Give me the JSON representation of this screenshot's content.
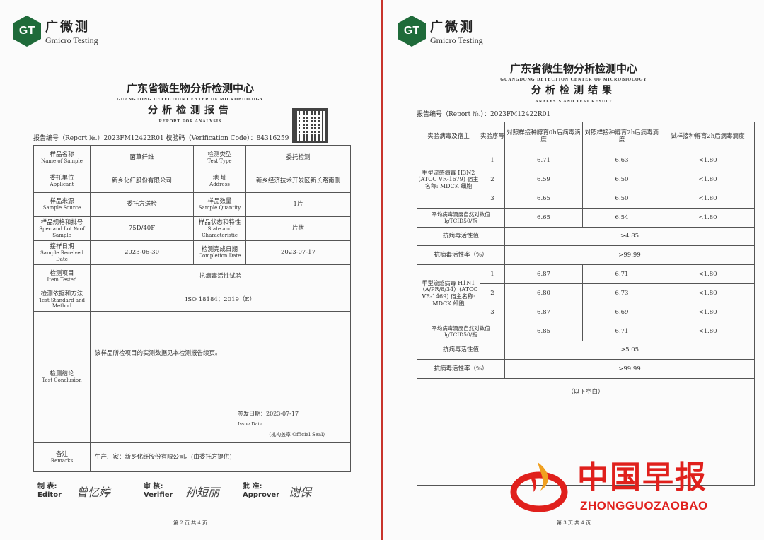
{
  "logo": {
    "cn": "广微测",
    "en": "Gmicro Testing",
    "mark": "GT"
  },
  "page1": {
    "center": "广东省微生物分析检测中心",
    "center_en": "GUANGDONG DETECTION CENTER OF MICROBIOLOGY",
    "title": "分析检测报告",
    "title_en": "REPORT FOR ANALYSIS",
    "report_line": "报告编号（Report №.）2023FM12422R01  校验码（Verification Code）：84316259",
    "rows": [
      {
        "l1": "样品名称",
        "l1en": "Name of Sample",
        "v1": "菌草纤维",
        "l2": "检测类型",
        "l2en": "Test Type",
        "v2": "委托检测"
      },
      {
        "l1": "委托单位",
        "l1en": "Applicant",
        "v1": "新乡化纤股份有限公司",
        "l2": "地 址",
        "l2en": "Address",
        "v2": "新乡经济技术开发区新长路南侧"
      },
      {
        "l1": "样品来源",
        "l1en": "Sample Source",
        "v1": "委托方送检",
        "l2": "样品数量",
        "l2en": "Sample Quantity",
        "v2": "1片"
      },
      {
        "l1": "样品规格和批号",
        "l1en": "Spec and Lot № of Sample",
        "v1": "75D/40F",
        "l2": "样品状态和特性",
        "l2en": "State and Characteristic",
        "v2": "片状"
      },
      {
        "l1": "接样日期",
        "l1en": "Sample Received Date",
        "v1": "2023-06-30",
        "l2": "检测完成日期",
        "l2en": "Completion Date",
        "v2": "2023-07-17"
      }
    ],
    "item": {
      "l": "检测项目",
      "len": "Item Tested",
      "v": "抗病毒活性试验"
    },
    "method": {
      "l": "检测依据和方法",
      "len": "Test Standard and Method",
      "v": "ISO 18184：2019（E）"
    },
    "conclusion": {
      "l": "检测结论",
      "len": "Test Conclusion",
      "v": "该样品所检项目的实测数据见本检测报告续页。",
      "issue": "签发日期：2023-07-17",
      "issue_en": "Issue Date",
      "seal": "（机构盖章 Official Seal）"
    },
    "remarks": {
      "l": "备注",
      "len": "Remarks",
      "v": "生产厂家：新乡化纤股份有限公司。(由委托方提供)"
    },
    "signatures": [
      {
        "cn": "制 表:",
        "en": "Editor",
        "sig": "曾忆婷"
      },
      {
        "cn": "审 核:",
        "en": "Verifier",
        "sig": "孙短丽"
      },
      {
        "cn": "批 准:",
        "en": "Approver",
        "sig": "谢保"
      }
    ],
    "footer": "第 2 页 共 4 页"
  },
  "page2": {
    "center": "广东省微生物分析检测中心",
    "center_en": "GUANGDONG DETECTION CENTER OF MICROBIOLOGY",
    "title": "分析检测结果",
    "title_en": "ANALYSIS AND TEST RESULT",
    "report_line": "报告编号（Report №.）：2023FM12422R01",
    "headers": [
      "实验病毒及宿主",
      "实验序号",
      "对照样接种孵育0h后病毒滴度",
      "对照样接种孵育2h后病毒滴度",
      "试样接种孵育2h后病毒滴度"
    ],
    "groups": [
      {
        "virus": "甲型流感病毒 H3N2 (ATCC VR-1679) 宿主名称: MDCK 细胞",
        "rows": [
          [
            "1",
            "6.71",
            "6.63",
            "<1.80"
          ],
          [
            "2",
            "6.59",
            "6.50",
            "<1.80"
          ],
          [
            "3",
            "6.65",
            "6.50",
            "<1.80"
          ]
        ],
        "avg_label": "平均病毒滴度自然对数值 lgTCID50/瓶",
        "avg": [
          "6.65",
          "6.54",
          "<1.80"
        ],
        "activity_label": "抗病毒活性值",
        "activity": ">4.85",
        "rate_label": "抗病毒活性率（%）",
        "rate": ">99.99"
      },
      {
        "virus": "甲型流感病毒 H1N1（A/PR/8/34）(ATCC VR-1469) 宿主名称: MDCK 细胞",
        "rows": [
          [
            "1",
            "6.87",
            "6.71",
            "<1.80"
          ],
          [
            "2",
            "6.80",
            "6.73",
            "<1.80"
          ],
          [
            "3",
            "6.87",
            "6.69",
            "<1.80"
          ]
        ],
        "avg_label": "平均病毒滴度自然对数值 lgTCID50/瓶",
        "avg": [
          "6.85",
          "6.71",
          "<1.80"
        ],
        "activity_label": "抗病毒活性值",
        "activity": ">5.05",
        "rate_label": "抗病毒活性率（%）",
        "rate": ">99.99"
      }
    ],
    "blank_note": "（以下空白）",
    "footer": "第 3 页 共 4 页"
  },
  "watermark": {
    "cn": "中国早报",
    "en": "ZHONGGUOZAOBAO",
    "color": "#e0201c"
  },
  "colors": {
    "divider": "#c8342c",
    "logo": "#1f6b3a"
  }
}
